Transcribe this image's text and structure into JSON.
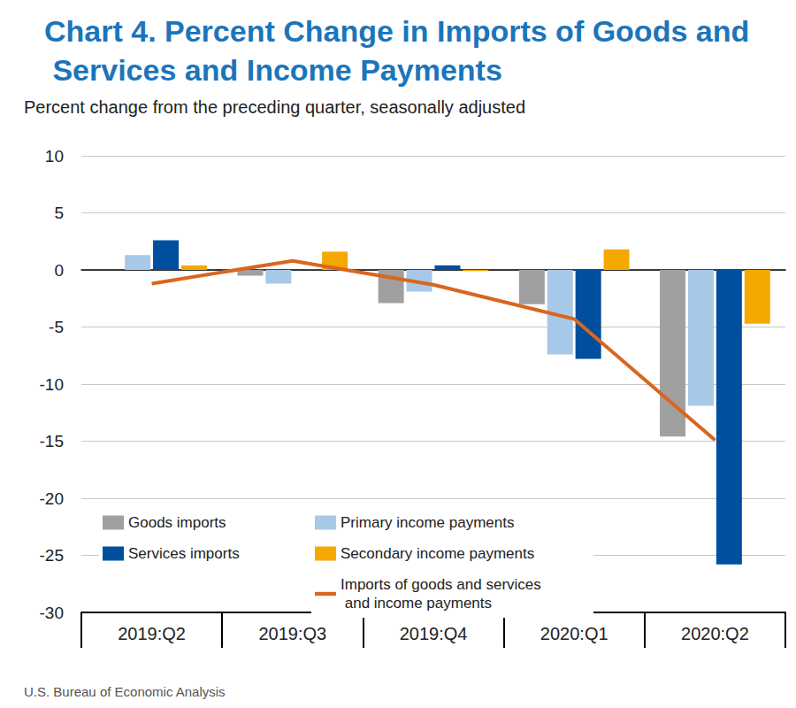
{
  "chart_data": {
    "type": "bar",
    "title": "Chart 4. Percent Change in Imports of Goods and Services and Income Payments",
    "subtitle": "Percent change from the preceding quarter, seasonally adjusted",
    "annotations": [
      "U.S. Bureau of Economic Analysis"
    ],
    "categories": [
      "2019:Q2",
      "2019:Q3",
      "2019:Q4",
      "2020:Q1",
      "2020:Q2"
    ],
    "series": [
      {
        "name": "Goods imports",
        "type": "bar",
        "color": "#a0a0a0",
        "values": [
          0.0,
          -0.5,
          -2.9,
          -3.0,
          -14.6
        ]
      },
      {
        "name": "Primary income payments",
        "type": "bar",
        "color": "#a8c8e8",
        "values": [
          1.3,
          -1.2,
          -1.9,
          -7.4,
          -11.9
        ]
      },
      {
        "name": "Services imports",
        "type": "bar",
        "color": "#004f9e",
        "values": [
          2.6,
          0.0,
          0.4,
          -7.8,
          -25.8
        ]
      },
      {
        "name": "Secondary income payments",
        "type": "bar",
        "color": "#f5a800",
        "values": [
          0.4,
          1.6,
          -0.1,
          1.8,
          -4.7
        ]
      },
      {
        "name": "Imports of goods and services and income payments",
        "type": "line",
        "color": "#d9661f",
        "line_style": "solid",
        "values": [
          -1.2,
          0.8,
          -1.3,
          -4.3,
          -14.9
        ]
      }
    ],
    "ylim": [
      -30,
      10
    ],
    "yticks": [
      -30,
      -25,
      -20,
      -15,
      -10,
      -5,
      0,
      5,
      10
    ],
    "grid": true,
    "legend": "lower left"
  }
}
